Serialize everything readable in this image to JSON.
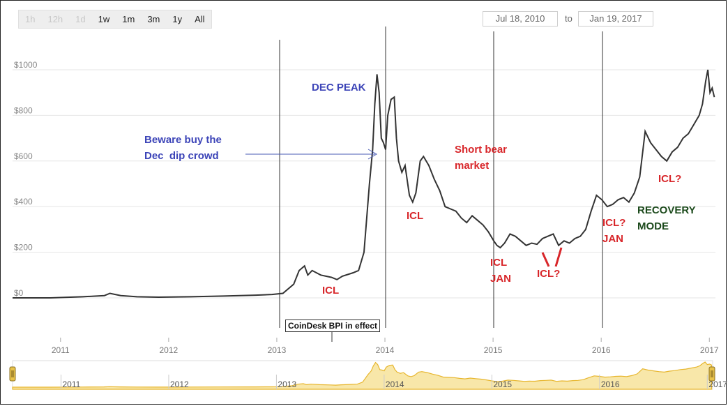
{
  "toolbar": {
    "range_buttons": [
      {
        "label": "1h",
        "enabled": false
      },
      {
        "label": "12h",
        "enabled": false
      },
      {
        "label": "1d",
        "enabled": false
      },
      {
        "label": "1w",
        "enabled": true
      },
      {
        "label": "1m",
        "enabled": true
      },
      {
        "label": "3m",
        "enabled": true
      },
      {
        "label": "1y",
        "enabled": true
      },
      {
        "label": "All",
        "enabled": true
      }
    ],
    "date_from": "Jul 18, 2010",
    "date_to_label": "to",
    "date_to": "Jan 19, 2017"
  },
  "chart_data": {
    "type": "line",
    "title": "",
    "xlabel": "",
    "ylabel": "",
    "y_ticks": [
      "$0",
      "$200",
      "$400",
      "$600",
      "$800",
      "$1000"
    ],
    "x_ticks": [
      "2011",
      "2012",
      "2013",
      "2014",
      "2015",
      "2016",
      "2017"
    ],
    "ylim": [
      0,
      1000
    ],
    "xlim": [
      2010.55,
      2017.05
    ],
    "grid": true,
    "series": [
      {
        "color": "#333333",
        "x": [
          2010.55,
          2010.9,
          2011.2,
          2011.4,
          2011.45,
          2011.55,
          2011.7,
          2011.9,
          2012.2,
          2012.5,
          2012.8,
          2012.95,
          2013.05,
          2013.15,
          2013.2,
          2013.25,
          2013.28,
          2013.32,
          2013.4,
          2013.5,
          2013.55,
          2013.6,
          2013.7,
          2013.75,
          2013.8,
          2013.85,
          2013.88,
          2013.9,
          2013.92,
          2013.94,
          2013.96,
          2013.98,
          2014.0,
          2014.02,
          2014.05,
          2014.08,
          2014.1,
          2014.12,
          2014.15,
          2014.18,
          2014.22,
          2014.25,
          2014.28,
          2014.32,
          2014.35,
          2014.4,
          2014.45,
          2014.5,
          2014.55,
          2014.6,
          2014.65,
          2014.7,
          2014.75,
          2014.8,
          2014.85,
          2014.9,
          2014.95,
          2015.0,
          2015.03,
          2015.06,
          2015.1,
          2015.15,
          2015.2,
          2015.25,
          2015.3,
          2015.35,
          2015.4,
          2015.45,
          2015.5,
          2015.55,
          2015.6,
          2015.65,
          2015.7,
          2015.75,
          2015.8,
          2015.85,
          2015.9,
          2015.95,
          2016.0,
          2016.05,
          2016.1,
          2016.15,
          2016.2,
          2016.25,
          2016.3,
          2016.35,
          2016.4,
          2016.45,
          2016.5,
          2016.55,
          2016.6,
          2016.65,
          2016.7,
          2016.75,
          2016.8,
          2016.85,
          2016.9,
          2016.93,
          2016.96,
          2016.98,
          2017.0,
          2017.02,
          2017.04
        ],
        "values": [
          0,
          0,
          5,
          10,
          20,
          10,
          5,
          3,
          5,
          8,
          12,
          15,
          20,
          60,
          120,
          140,
          100,
          120,
          100,
          90,
          80,
          95,
          110,
          120,
          200,
          500,
          650,
          850,
          980,
          900,
          700,
          680,
          650,
          800,
          870,
          880,
          700,
          600,
          550,
          580,
          450,
          420,
          460,
          600,
          620,
          580,
          520,
          470,
          400,
          390,
          380,
          350,
          330,
          360,
          340,
          320,
          290,
          250,
          230,
          220,
          240,
          280,
          270,
          250,
          230,
          240,
          235,
          260,
          270,
          280,
          230,
          250,
          240,
          260,
          270,
          300,
          380,
          450,
          430,
          400,
          410,
          430,
          440,
          420,
          460,
          530,
          730,
          680,
          650,
          620,
          600,
          640,
          660,
          700,
          720,
          760,
          800,
          850,
          950,
          1000,
          900,
          920,
          880
        ]
      }
    ],
    "navigator": {
      "x_ticks": [
        "2011",
        "2012",
        "2013",
        "2014",
        "2015",
        "2016",
        "2017"
      ]
    }
  },
  "annotations": {
    "tooltip": "CoinDesk BPI in effect",
    "dec_peak": "DEC PEAK",
    "beware": "Beware buy the\nDec  dip crowd",
    "short_bear": "Short bear\nmarket",
    "icl_1": "ICL",
    "icl_2": "ICL",
    "icl_jan_1": "ICL\nJAN",
    "icl_q_1": "ICL?",
    "icl_q_jan": "ICL?\nJAN",
    "recovery": "RECOVERY\nMODE",
    "icl_q_2": "ICL?"
  },
  "colors": {
    "line": "#333333",
    "annotation_blue": "#3d45b8",
    "annotation_red": "#d8262a",
    "annotation_green": "#1c4a1c",
    "navigator_fill": "#f8e7a9",
    "navigator_line": "#e7b62e"
  }
}
